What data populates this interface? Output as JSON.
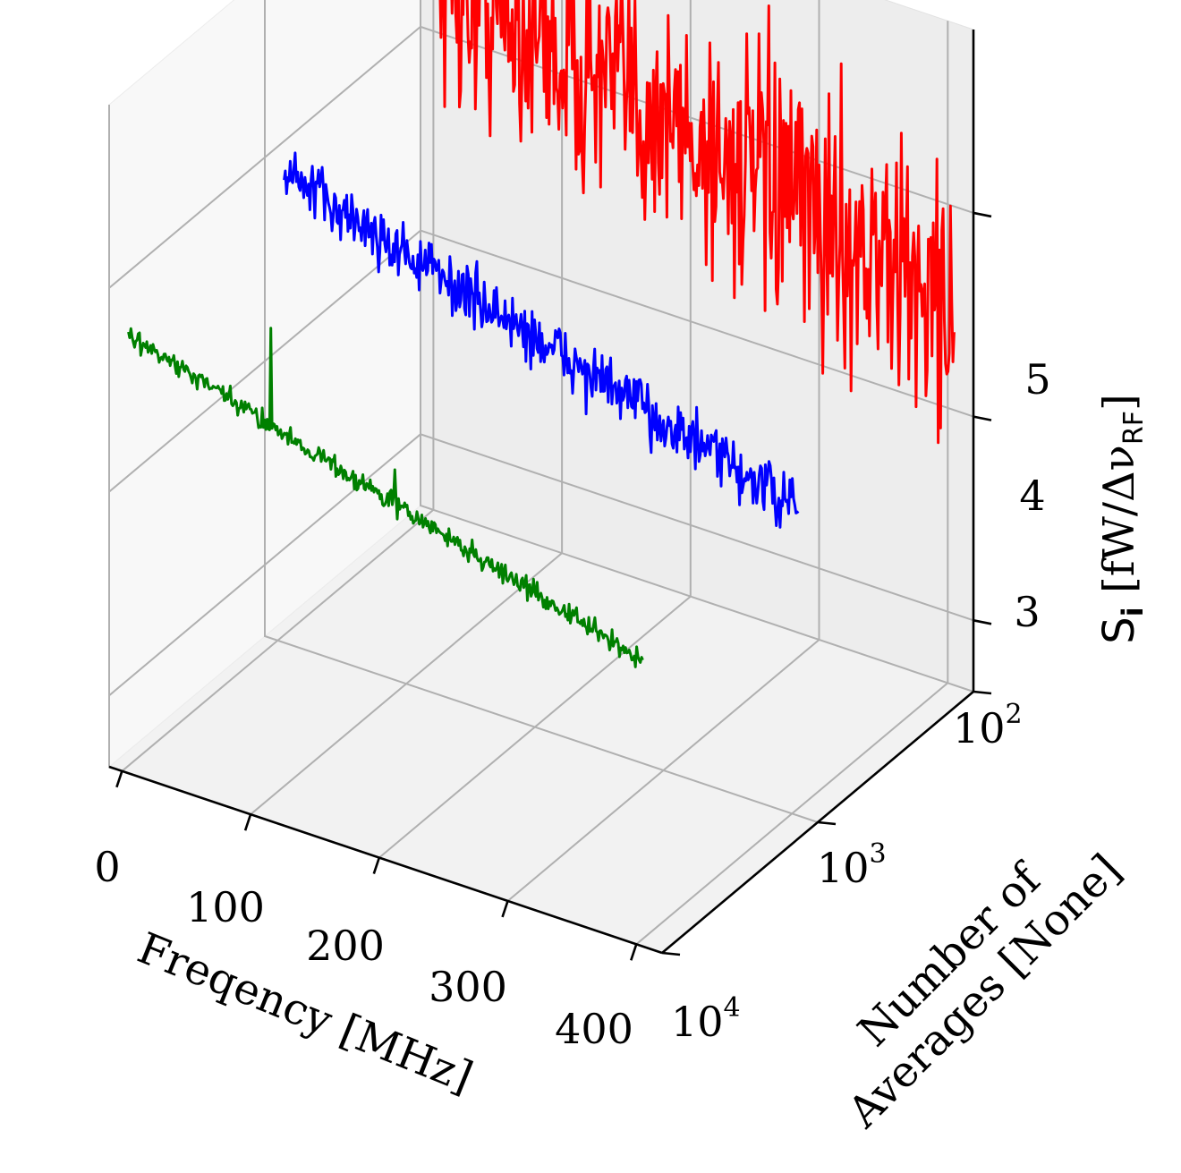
{
  "chart_data": {
    "type": "line",
    "projection": "3d",
    "title": "",
    "x_axis": {
      "label": "Freqency [MHz]",
      "range": [
        -10,
        420
      ],
      "ticks": [
        0,
        100,
        200,
        300,
        400
      ],
      "tick_labels": [
        "0",
        "100",
        "200",
        "300",
        "400"
      ]
    },
    "y_axis": {
      "label_line1": "Number of",
      "label_line2": "Averages [None]",
      "scale": "log",
      "range": [
        100,
        10000
      ],
      "ticks": [
        100,
        1000,
        10000
      ],
      "tick_labels": [
        {
          "base": "10",
          "exp": "2"
        },
        {
          "base": "10",
          "exp": "3"
        },
        {
          "base": "10",
          "exp": "4"
        }
      ]
    },
    "z_axis": {
      "label_main": "S",
      "label_sub": "i",
      "label_unit_open": " [fW/Δν",
      "label_unit_sub": "RF",
      "label_unit_close": "]",
      "range": [
        2.65,
        5.9
      ],
      "ticks": [
        3,
        4,
        5
      ],
      "tick_labels": [
        "3",
        "4",
        "5"
      ]
    },
    "grid": true,
    "series": [
      {
        "averages": 100,
        "color": "#ff0000",
        "freq_start": 5,
        "freq_end": 405,
        "mean_start": 5.3,
        "mean_end": 4.5,
        "noise_amplitude": 0.6,
        "points": 420
      },
      {
        "averages": 1000,
        "color": "#0000ff",
        "freq_start": 5,
        "freq_end": 405,
        "mean_start": 4.95,
        "mean_end": 4.15,
        "noise_amplitude": 0.14,
        "points": 420
      },
      {
        "averages": 10000,
        "color": "#008000",
        "freq_start": 5,
        "freq_end": 405,
        "mean_start": 4.8,
        "mean_end": 4.05,
        "noise_amplitude": 0.05,
        "points": 420,
        "spikes": [
          {
            "freq": 116,
            "value": 5.07
          },
          {
            "freq": 212,
            "value": 4.58
          }
        ]
      }
    ]
  }
}
